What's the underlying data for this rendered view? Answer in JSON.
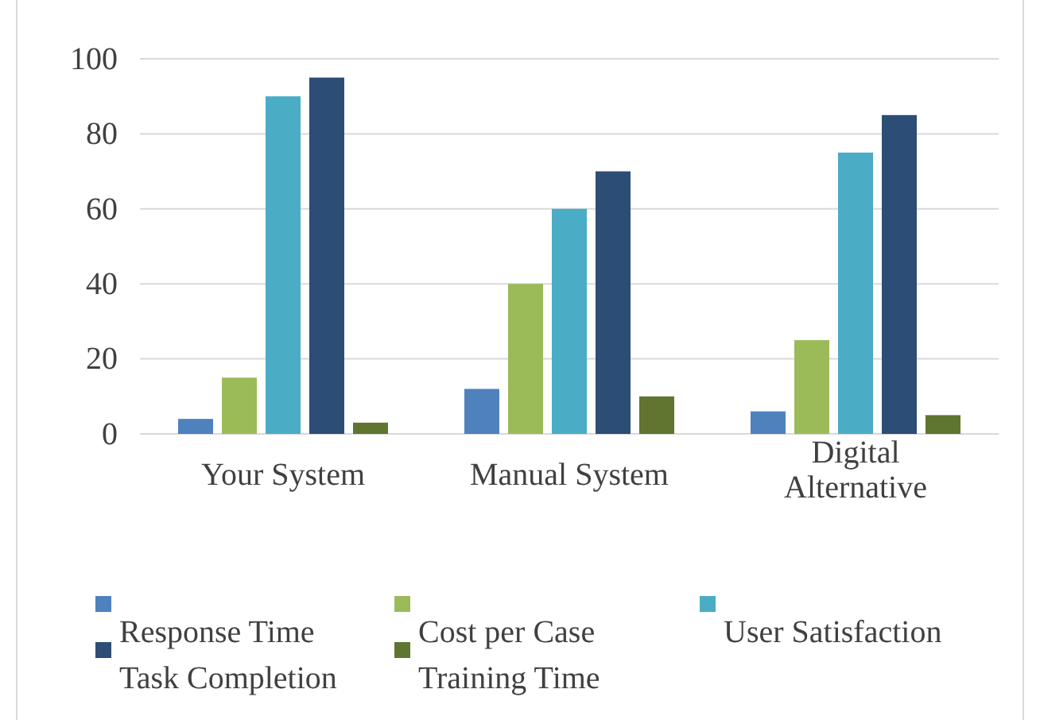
{
  "chart_data": {
    "type": "bar",
    "categories": [
      "Your System",
      "Manual System",
      "Digital Alternative"
    ],
    "series": [
      {
        "name": "Response Time",
        "color": "#4f81bd",
        "values": [
          4,
          12,
          6
        ]
      },
      {
        "name": "Cost per Case",
        "color": "#9bbb59",
        "values": [
          15,
          40,
          25
        ]
      },
      {
        "name": "User Satisfaction",
        "color": "#4bacc6",
        "values": [
          90,
          60,
          75
        ]
      },
      {
        "name": "Task Completion",
        "color": "#2c4d75",
        "values": [
          95,
          70,
          85
        ]
      },
      {
        "name": "Training Time",
        "color": "#5f7530",
        "values": [
          3,
          10,
          5
        ]
      }
    ],
    "ylim": [
      0,
      100
    ],
    "yticks": [
      0,
      20,
      40,
      60,
      80,
      100
    ],
    "grid": "y",
    "legend": "bottom"
  }
}
